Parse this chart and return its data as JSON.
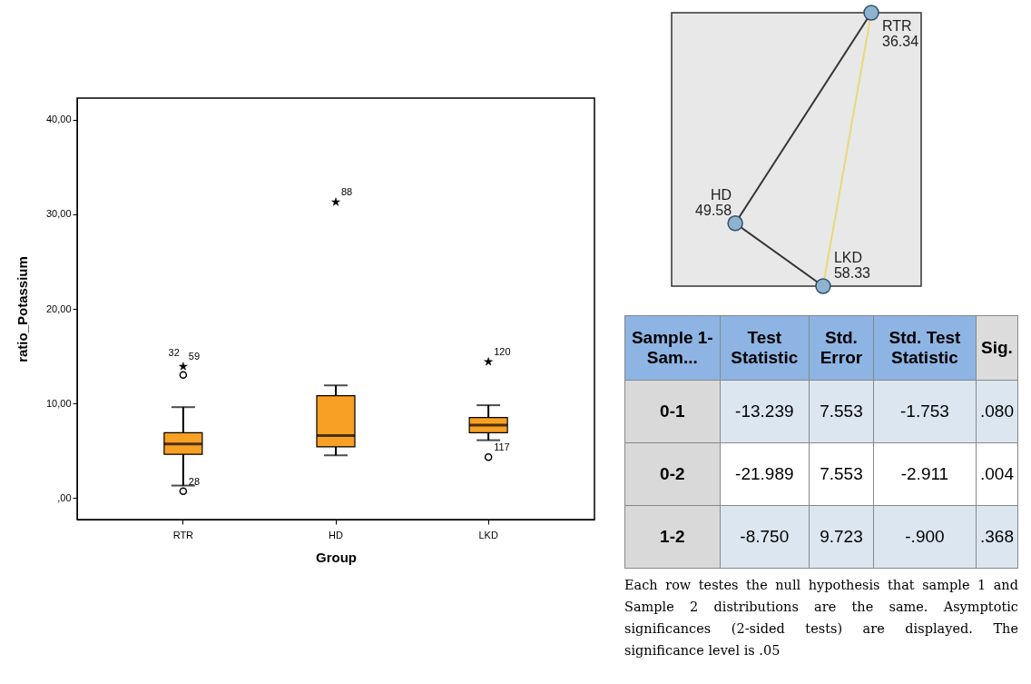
{
  "chart_data": [
    {
      "type": "box",
      "xlabel": "Group",
      "ylabel": "ratio_Potassium",
      "categories": [
        "RTR",
        "HD",
        "LKD"
      ],
      "color": "#f7a023",
      "boxes": [
        {
          "low": 1.3,
          "q1": 4.6,
          "median": 5.7,
          "q3": 6.9,
          "high": 9.6
        },
        {
          "low": 4.5,
          "q1": 5.4,
          "median": 6.6,
          "q3": 10.8,
          "high": 11.9
        },
        {
          "low": 6.1,
          "q1": 6.9,
          "median": 7.7,
          "q3": 8.5,
          "high": 9.8
        }
      ],
      "series": [
        {
          "type": "scatter",
          "marker": "circle",
          "color": "#000000",
          "x": [
            "RTR",
            "RTR",
            "LKD"
          ],
          "values": [
            13.0,
            0.7,
            4.3
          ]
        },
        {
          "type": "scatter",
          "marker": "star",
          "color": "#000000",
          "x": [
            "RTR",
            "HD",
            "LKD"
          ],
          "values": [
            13.9,
            31.3,
            14.4
          ]
        }
      ],
      "ylim": [
        -2.3,
        42.3
      ],
      "yticks": [
        {
          "value": 0,
          "label": ",00"
        },
        {
          "value": 10,
          "label": "10,00"
        },
        {
          "value": 20,
          "label": "20,00"
        },
        {
          "value": 30,
          "label": "30,00"
        },
        {
          "value": 40,
          "label": "40,00"
        }
      ],
      "annotations": [
        {
          "text": "32",
          "x": "RTR",
          "y": 13.9
        },
        {
          "text": "59",
          "x": "RTR",
          "y": 13.9
        },
        {
          "text": "28",
          "x": "RTR",
          "y": 0.7
        },
        {
          "text": "88",
          "x": "HD",
          "y": 31.3
        },
        {
          "text": "120",
          "x": "LKD",
          "y": 14.4
        },
        {
          "text": "117",
          "x": "LKD",
          "y": 4.3
        }
      ]
    },
    {
      "type": "other",
      "categories": [
        "RTR",
        "HD",
        "LKD"
      ],
      "values": [
        36.34,
        49.58,
        58.33
      ],
      "data_labels": true
    },
    {
      "type": "other",
      "categories": [
        "Sample 1-Sam...",
        "Test Statistic",
        "Std. Error",
        "Std. Test Statistic",
        "Sig."
      ],
      "y_categories": [
        "0-1",
        "0-2",
        "1-2"
      ],
      "cell_labels": [
        [
          "-13.239",
          "7.553",
          "-1.753",
          ".080"
        ],
        [
          "-21.989",
          "7.553",
          "-2.911",
          ".004"
        ],
        [
          "-8.750",
          "9.723",
          "-.900",
          ".368"
        ]
      ],
      "annotations": [
        "Each row testes the null hypothesis that sample 1 and Sample 2 distributions are the same. Asymptotic significances (2-sided tests) are displayed. The significance level is .05"
      ]
    }
  ]
}
